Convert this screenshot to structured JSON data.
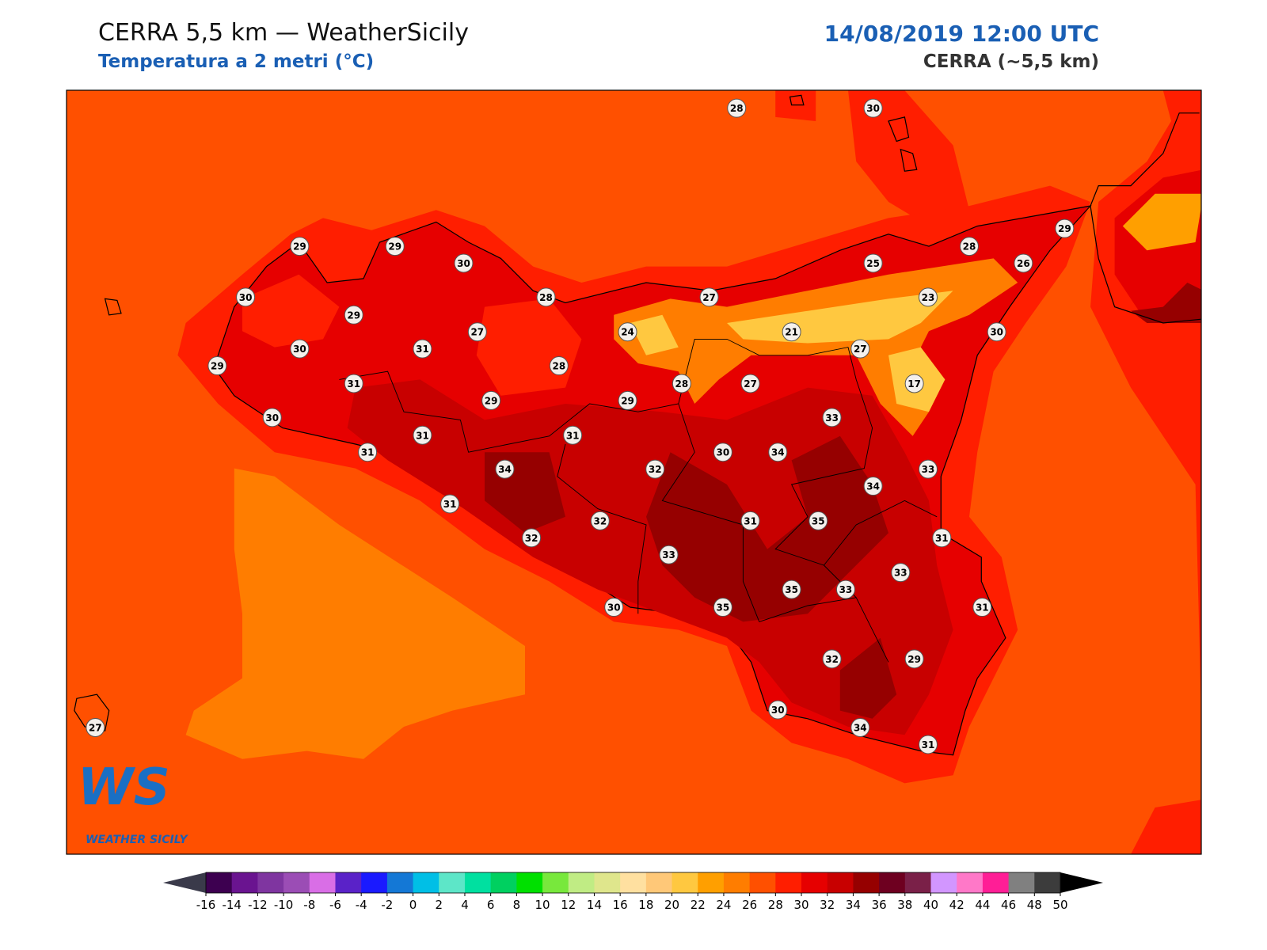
{
  "header": {
    "title": "CERRA 5,5 km — WeatherSicily",
    "subtitle": "Temperatura a 2 metri (°C)",
    "datetime": "14/08/2019 12:00 UTC",
    "model": "CERRA (~5,5 km)"
  },
  "stations": [
    28,
    30,
    29,
    29,
    30,
    30,
    28,
    27,
    25,
    28,
    26,
    29,
    23,
    29,
    30,
    31,
    27,
    24,
    21,
    27,
    30,
    29,
    31,
    28,
    28,
    27,
    17,
    30,
    29,
    29,
    33,
    31,
    31,
    31,
    34,
    32,
    30,
    34,
    33,
    34,
    31,
    32,
    31,
    35,
    31,
    32,
    33,
    33,
    35,
    33,
    30,
    35,
    31,
    32,
    29,
    30,
    34,
    31,
    27
  ],
  "colorbar": {
    "ticks": [
      -16,
      -14,
      -12,
      -10,
      -8,
      -6,
      -4,
      -2,
      0,
      2,
      4,
      6,
      8,
      10,
      12,
      14,
      16,
      18,
      20,
      22,
      24,
      26,
      28,
      30,
      32,
      34,
      36,
      38,
      40,
      42,
      44,
      46,
      48,
      50
    ],
    "colors": [
      "#3d0050",
      "#6a1490",
      "#7f35a0",
      "#9b4db5",
      "#d96ee6",
      "#5a22c8",
      "#1a1aff",
      "#1478d6",
      "#00bfe6",
      "#5de6c8",
      "#00e0a0",
      "#00d060",
      "#00e000",
      "#78e83c",
      "#c0ec84",
      "#dfe68c",
      "#ffe0a0",
      "#ffc878",
      "#ffc840",
      "#ff9f00",
      "#ff7d00",
      "#ff5000",
      "#ff1e00",
      "#e60000",
      "#c80000",
      "#960000",
      "#6e0020",
      "#7a2048",
      "#d296ff",
      "#ff78c8",
      "#ff1e96",
      "#808080",
      "#3c3c3c"
    ],
    "under": "#3a3a4a",
    "over": "#000000"
  },
  "logo": {
    "mark": "WS",
    "caption": "WEATHER SICILY"
  }
}
